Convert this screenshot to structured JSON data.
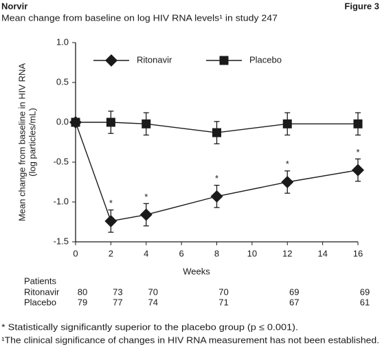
{
  "header": {
    "brand": "Norvir",
    "figure": "Figure 3"
  },
  "chart_data": {
    "type": "line",
    "title": "Mean change from baseline on log HIV RNA levels¹ in study 247",
    "xlabel": "Weeks",
    "ylabel": [
      "Mean change from baseline in HIV RNA",
      "(log particles/mL)"
    ],
    "x": [
      0,
      2,
      4,
      8,
      12,
      16
    ],
    "series": [
      {
        "name": "Ritonavir",
        "color": "#1a1a1a",
        "marker": "diamond",
        "values": [
          0,
          -1.24,
          -1.16,
          -0.93,
          -0.75,
          -0.6
        ],
        "errors": [
          0,
          0.14,
          0.14,
          0.14,
          0.14,
          0.14
        ],
        "significance": [
          null,
          "*",
          "*",
          "*",
          "*",
          "*"
        ]
      },
      {
        "name": "Placebo",
        "color": "#1a1a1a",
        "marker": "square",
        "values": [
          0,
          0,
          -0.02,
          -0.13,
          -0.02,
          -0.02
        ],
        "errors": [
          0,
          0.14,
          0.14,
          0.14,
          0.14,
          0.14
        ]
      }
    ],
    "xlim": [
      0,
      16
    ],
    "xticks": [
      0,
      2,
      4,
      6,
      8,
      10,
      12,
      14,
      16
    ],
    "ylim": [
      -1.5,
      1
    ],
    "yticks": [
      {
        "value": 1,
        "label": "1.0"
      },
      0.5,
      {
        "value": 0,
        "label": "0.0"
      },
      -0.5,
      {
        "value": -1,
        "label": "-1.0"
      },
      -1.5
    ],
    "legend": "top",
    "grid": false
  },
  "patients": {
    "title": "Patients",
    "rows": [
      {
        "name": "Ritonavir",
        "counts": [
          "80",
          "73",
          "70",
          "70",
          "69",
          "69"
        ]
      },
      {
        "name": "Placebo",
        "counts": [
          "79",
          "77",
          "74",
          "71",
          "67",
          "61"
        ]
      }
    ]
  },
  "footnotes": [
    "* Statistically significantly superior to the placebo group (p ≤ 0.001).",
    "¹The clinical significance of changes in HIV RNA measurement has not been established."
  ]
}
